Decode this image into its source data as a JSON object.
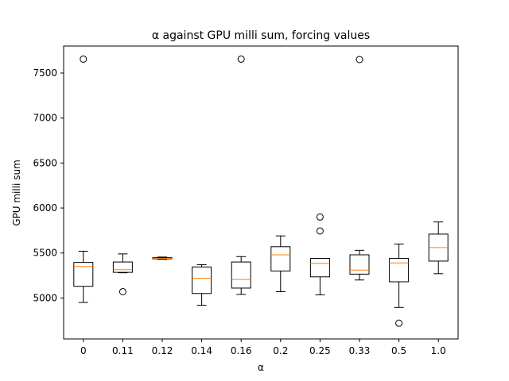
{
  "chart_data": {
    "type": "box",
    "title": "α against GPU milli sum, forcing values",
    "xlabel": "α",
    "ylabel": "GPU milli sum",
    "ylim": [
      4545,
      7800
    ],
    "yticks": [
      5000,
      5500,
      6000,
      6500,
      7000,
      7500
    ],
    "grid": false,
    "colors": {
      "box": "#000000",
      "median": "#ff7f0e"
    },
    "categories": [
      "0",
      "0.11",
      "0.12",
      "0.14",
      "0.16",
      "0.2",
      "0.25",
      "0.33",
      "0.5",
      "1.0"
    ],
    "boxes": [
      {
        "label": "0",
        "whislo": 4950,
        "q1": 5130,
        "med": 5350,
        "q3": 5395,
        "whishi": 5520,
        "fliers": [
          7655
        ]
      },
      {
        "label": "0.11",
        "whislo": 5280,
        "q1": 5285,
        "med": 5315,
        "q3": 5400,
        "whishi": 5490,
        "fliers": [
          5070
        ]
      },
      {
        "label": "0.12",
        "whislo": 5430,
        "q1": 5435,
        "med": 5440,
        "q3": 5448,
        "whishi": 5455,
        "fliers": []
      },
      {
        "label": "0.14",
        "whislo": 4920,
        "q1": 5050,
        "med": 5220,
        "q3": 5345,
        "whishi": 5370,
        "fliers": []
      },
      {
        "label": "0.16",
        "whislo": 5040,
        "q1": 5110,
        "med": 5205,
        "q3": 5400,
        "whishi": 5460,
        "fliers": [
          7655
        ]
      },
      {
        "label": "0.2",
        "whislo": 5070,
        "q1": 5300,
        "med": 5480,
        "q3": 5570,
        "whishi": 5690,
        "fliers": []
      },
      {
        "label": "0.25",
        "whislo": 5035,
        "q1": 5235,
        "med": 5385,
        "q3": 5440,
        "whishi": 5440,
        "fliers": [
          5900,
          5745
        ]
      },
      {
        "label": "0.33",
        "whislo": 5200,
        "q1": 5265,
        "med": 5310,
        "q3": 5480,
        "whishi": 5530,
        "fliers": [
          7650
        ]
      },
      {
        "label": "0.5",
        "whislo": 4895,
        "q1": 5180,
        "med": 5390,
        "q3": 5440,
        "whishi": 5600,
        "fliers": [
          4720
        ]
      },
      {
        "label": "1.0",
        "whislo": 5270,
        "q1": 5410,
        "med": 5560,
        "q3": 5710,
        "whishi": 5845,
        "fliers": []
      }
    ]
  }
}
